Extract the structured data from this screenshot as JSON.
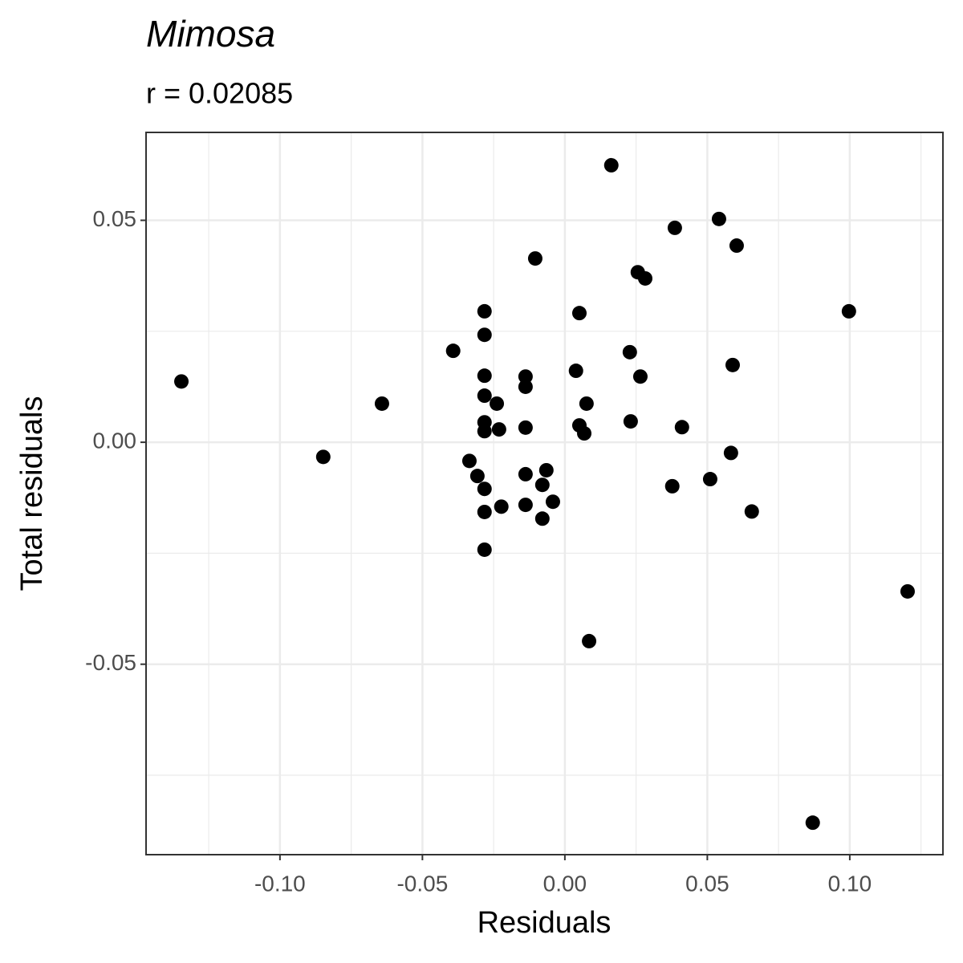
{
  "chart_data": {
    "type": "scatter",
    "title": "Mimosa",
    "subtitle": "r = 0.02085",
    "x_label": "Residuals",
    "y_label": "Total residuals",
    "color": "#000000",
    "grid": true,
    "xlim": [
      -0.147,
      0.1327
    ],
    "ylim": [
      -0.0929,
      0.0698
    ],
    "xticks": [
      {
        "value": -0.1,
        "label": "-0.10"
      },
      {
        "value": -0.05,
        "label": "-0.05"
      },
      {
        "value": 0,
        "label": "0.00"
      },
      {
        "value": 0.05,
        "label": "0.05"
      },
      {
        "value": 0.1,
        "label": "0.10"
      }
    ],
    "yticks": [
      {
        "value": -0.05,
        "label": "-0.05"
      },
      {
        "value": 0,
        "label": "0.00"
      },
      {
        "value": 0.05,
        "label": "0.05"
      }
    ],
    "x_minor_grid": [
      -0.125,
      -0.075,
      -0.025,
      0.025,
      0.075,
      0.125
    ],
    "y_minor_grid": [
      -0.075,
      -0.025,
      0.025
    ],
    "x": [
      -0.1346,
      -0.0848,
      -0.0642,
      -0.0392,
      -0.0335,
      -0.0307,
      -0.0282,
      -0.0282,
      -0.0282,
      -0.0282,
      -0.0282,
      -0.0282,
      -0.0282,
      -0.0282,
      -0.0282,
      -0.0239,
      -0.0231,
      -0.0223,
      -0.0138,
      -0.0138,
      -0.0138,
      -0.0138,
      -0.0138,
      -0.0104,
      -0.0079,
      -0.0079,
      -0.0065,
      -0.0042,
      0.0039,
      0.0051,
      0.0051,
      0.0068,
      0.0076,
      0.0085,
      0.0163,
      0.0228,
      0.0231,
      0.0256,
      0.0265,
      0.0282,
      0.0377,
      0.0386,
      0.0411,
      0.051,
      0.0541,
      0.0583,
      0.0589,
      0.0603,
      0.0656,
      0.087,
      0.0997,
      0.1203
    ],
    "y": [
      0.0137,
      -0.0033,
      0.0087,
      0.0206,
      -0.0042,
      -0.0076,
      0.0295,
      0.0242,
      0.015,
      0.0105,
      0.0045,
      0.0025,
      -0.0105,
      -0.0157,
      -0.0242,
      0.0087,
      0.0029,
      -0.0145,
      0.0148,
      0.0125,
      0.0033,
      -0.0072,
      -0.0141,
      0.0414,
      -0.0096,
      -0.0172,
      -0.0063,
      -0.0134,
      0.0161,
      0.0291,
      0.0038,
      0.002,
      0.0087,
      -0.0448,
      0.0624,
      0.0203,
      0.0047,
      0.0383,
      0.0148,
      0.0369,
      -0.0099,
      0.0483,
      0.0034,
      -0.0083,
      0.0503,
      -0.0024,
      0.0174,
      0.0443,
      -0.0156,
      -0.0857,
      0.0295,
      -0.0336
    ]
  }
}
